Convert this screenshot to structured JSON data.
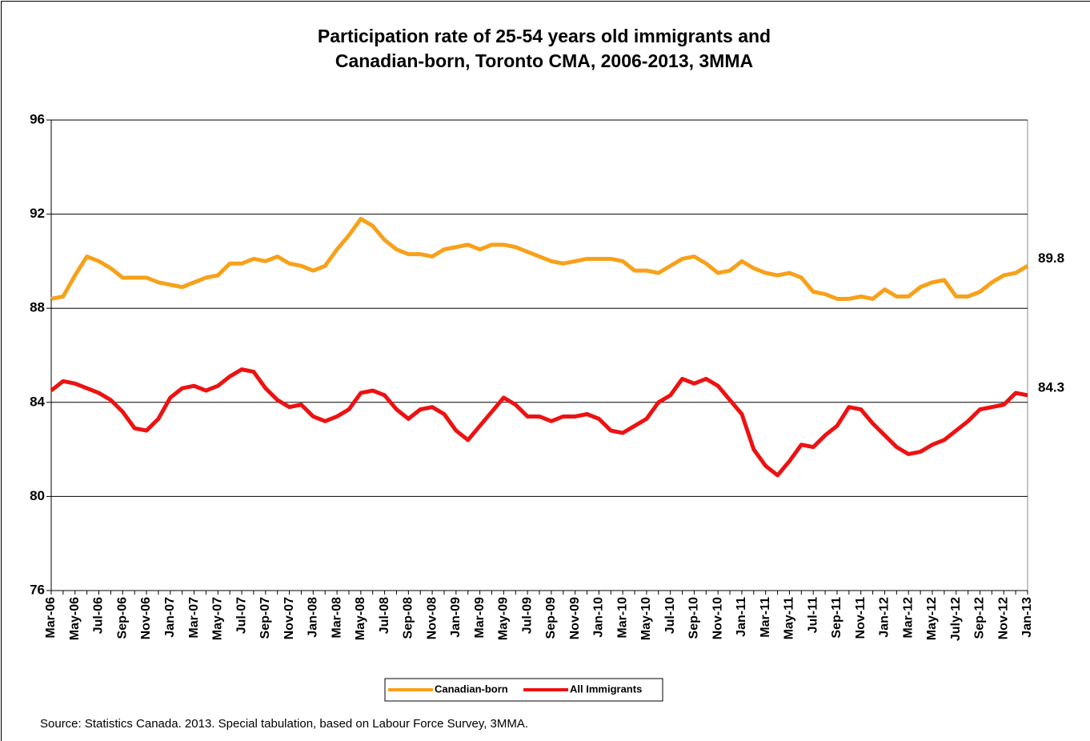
{
  "chart_data": {
    "type": "line",
    "title": [
      "Participation rate of 25-54 years old immigrants and",
      "Canadian-born, Toronto CMA, 2006-2013, 3MMA"
    ],
    "source": "Source: Statistics Canada. 2013. Special tabulation, based on Labour Force Survey, 3MMA.",
    "categories": [
      "Mar-06",
      null,
      "May-06",
      null,
      "Jul-06",
      null,
      "Sep-06",
      null,
      "Nov-06",
      null,
      "Jan-07",
      null,
      "Mar-07",
      null,
      "May-07",
      null,
      "Jul-07",
      null,
      "Sep-07",
      null,
      "Nov-07",
      null,
      "Jan-08",
      null,
      "Mar-08",
      null,
      "May-08",
      null,
      "Jul-08",
      null,
      "Sep-08",
      null,
      "Nov-08",
      null,
      "Jan-09",
      null,
      "Mar-09",
      null,
      "May-09",
      null,
      "Jul-09",
      null,
      "Sep-09",
      null,
      "Nov-09",
      null,
      "Jan-10",
      null,
      "Mar-10",
      null,
      "May-10",
      null,
      "Jul-10",
      null,
      "Sep-10",
      null,
      "Nov-10",
      null,
      "Jan-11",
      null,
      "Mar-11",
      null,
      "May-11",
      null,
      "Jul-11",
      null,
      "Sep-11",
      null,
      "Nov-11",
      null,
      "Jan-12",
      null,
      "Mar-12",
      null,
      "May-12",
      null,
      "July-12",
      null,
      "Sep-12",
      null,
      "Nov-12",
      null,
      "Jan-13"
    ],
    "series": [
      {
        "name": "Canadian-born",
        "color": "#f7a11a",
        "values": [
          88.4,
          88.5,
          89.4,
          90.2,
          90.0,
          89.7,
          89.3,
          89.3,
          89.3,
          89.1,
          89.0,
          88.9,
          89.1,
          89.3,
          89.4,
          89.9,
          89.9,
          90.1,
          90.0,
          90.2,
          89.9,
          89.8,
          89.6,
          89.8,
          90.5,
          91.1,
          91.8,
          91.5,
          90.9,
          90.5,
          90.3,
          90.3,
          90.2,
          90.5,
          90.6,
          90.7,
          90.5,
          90.7,
          90.7,
          90.6,
          90.4,
          90.2,
          90.0,
          89.9,
          90.0,
          90.1,
          90.1,
          90.1,
          90.0,
          89.6,
          89.6,
          89.5,
          89.8,
          90.1,
          90.2,
          89.9,
          89.5,
          89.6,
          90.0,
          89.7,
          89.5,
          89.4,
          89.5,
          89.3,
          88.7,
          88.6,
          88.4,
          88.4,
          88.5,
          88.4,
          88.8,
          88.5,
          88.5,
          88.9,
          89.1,
          89.2,
          88.5,
          88.5,
          88.7,
          89.1,
          89.4,
          89.5,
          89.8
        ]
      },
      {
        "name": "All Immigrants",
        "color": "#ee1111",
        "values": [
          84.5,
          84.9,
          84.8,
          84.6,
          84.4,
          84.1,
          83.6,
          82.9,
          82.8,
          83.3,
          84.2,
          84.6,
          84.7,
          84.5,
          84.7,
          85.1,
          85.4,
          85.3,
          84.6,
          84.1,
          83.8,
          83.9,
          83.4,
          83.2,
          83.4,
          83.7,
          84.4,
          84.5,
          84.3,
          83.7,
          83.3,
          83.7,
          83.8,
          83.5,
          82.8,
          82.4,
          83.0,
          83.6,
          84.2,
          83.9,
          83.4,
          83.4,
          83.2,
          83.4,
          83.4,
          83.5,
          83.3,
          82.8,
          82.7,
          83.0,
          83.3,
          84.0,
          84.3,
          85.0,
          84.8,
          85.0,
          84.7,
          84.1,
          83.5,
          82.0,
          81.3,
          80.9,
          81.5,
          82.2,
          82.1,
          82.6,
          83.0,
          83.8,
          83.7,
          83.1,
          82.6,
          82.1,
          81.8,
          81.9,
          82.2,
          82.4,
          82.8,
          83.2,
          83.7,
          83.8,
          83.9,
          84.4,
          84.3
        ]
      }
    ],
    "ylim": [
      76,
      96
    ],
    "yticks": [
      76,
      80,
      84,
      88,
      92,
      96
    ],
    "grid": true
  }
}
